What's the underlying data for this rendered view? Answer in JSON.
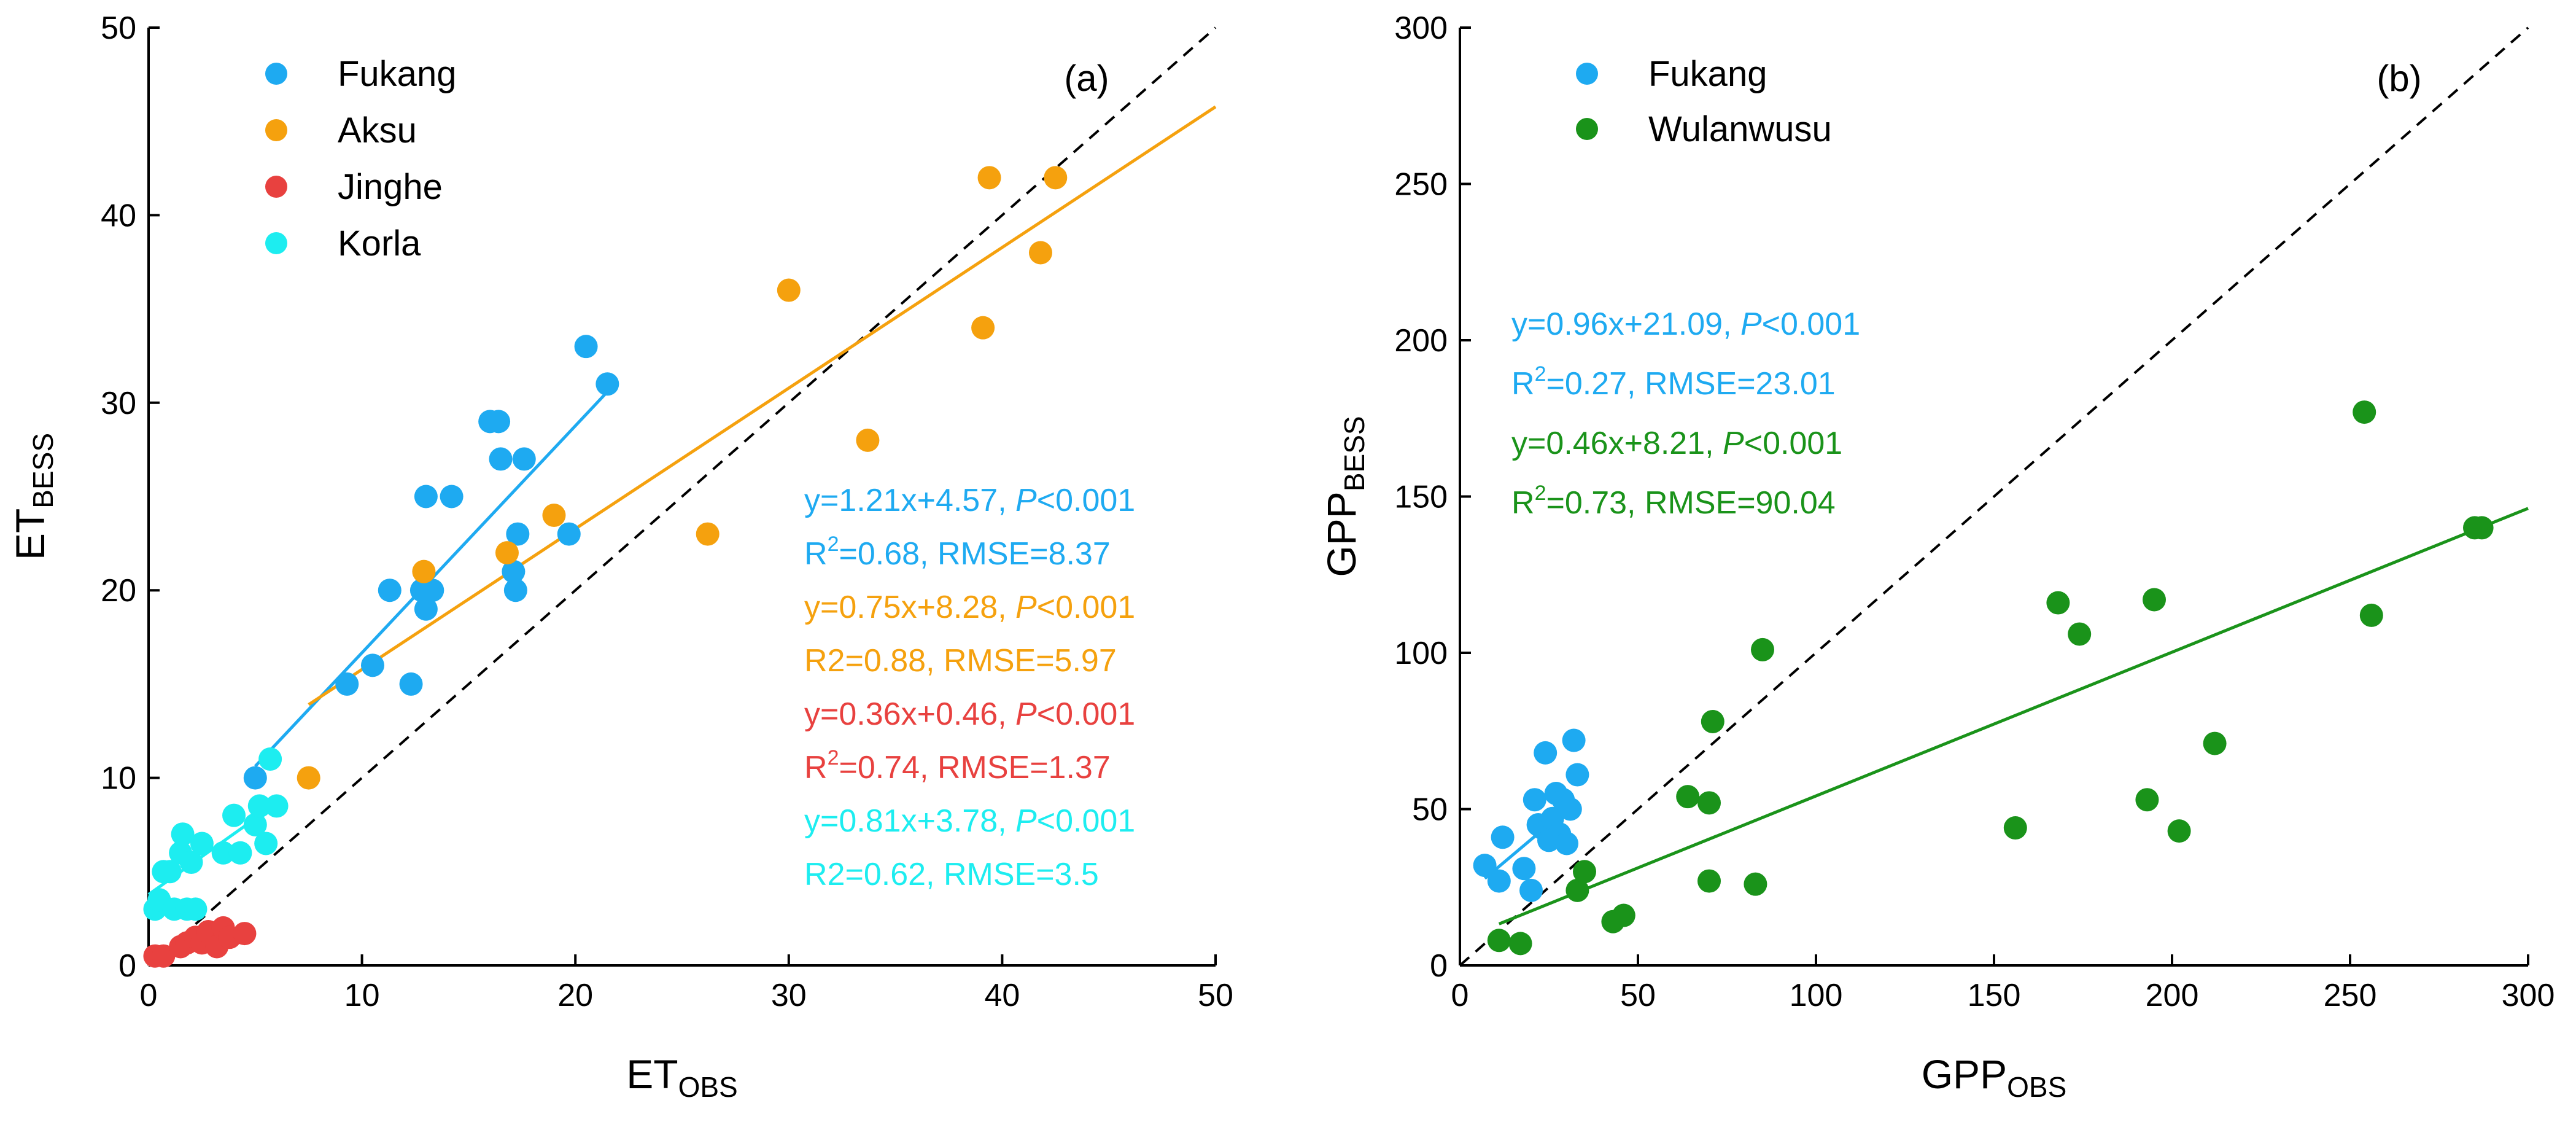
{
  "chart_data": [
    {
      "type": "scatter",
      "panel_label": "(a)",
      "xlabel": "ET",
      "xlabel_sub": "OBS",
      "ylabel": "ET",
      "ylabel_sub": "BESS",
      "xlim": [
        0,
        50
      ],
      "ylim": [
        0,
        50
      ],
      "xticks": [
        "0",
        "10",
        "20",
        "30",
        "40",
        "50"
      ],
      "yticks": [
        "0",
        "10",
        "20",
        "30",
        "40",
        "50"
      ],
      "legend_position": "top-left",
      "one_to_one_line": true,
      "series": [
        {
          "name": "Fukang",
          "color": "#1EAAF1",
          "x": [
            5,
            9.3,
            10.5,
            11.3,
            12.3,
            12.8,
            13,
            13,
            13.3,
            14.2,
            16,
            16.4,
            16.5,
            17.1,
            17.2,
            17.3,
            17.6,
            19.7,
            20.5,
            21.5
          ],
          "y": [
            10,
            15,
            16,
            20,
            15,
            20,
            19,
            25,
            20,
            25,
            29,
            29,
            27,
            21,
            20,
            23,
            27,
            23,
            33,
            31
          ],
          "fit": {
            "slope": 1.21,
            "intercept": 4.57,
            "x_range": [
              5,
              21.5
            ]
          },
          "stats": {
            "eq": "y=1.21x+4.57, ",
            "p_label": "P",
            "p_val": "<0.001",
            "r2_base": "R",
            "r2_sup": "2",
            "r2_rest": "=0.68, RMSE=8.37"
          }
        },
        {
          "name": "Aksu",
          "color": "#F5A10E",
          "x": [
            7.5,
            12.9,
            16.8,
            19,
            26.2,
            30,
            33.7,
            39.1,
            39.4,
            41.8,
            42.5
          ],
          "y": [
            10,
            21,
            22,
            24,
            23,
            36,
            28,
            34,
            42,
            38,
            42
          ],
          "fit": {
            "slope": 0.75,
            "intercept": 8.28,
            "x_range": [
              7.5,
              50
            ]
          },
          "stats": {
            "eq": "y=0.75x+8.28, ",
            "p_label": "P",
            "p_val": "<0.001",
            "r2_base": "R2",
            "r2_sup": "",
            "r2_rest": "=0.88, RMSE=5.97"
          }
        },
        {
          "name": "Jinghe",
          "color": "#E8413F",
          "x": [
            0.3,
            0.7,
            1.5,
            1.8,
            2.2,
            2.5,
            2.8,
            3.0,
            3.2,
            3.5,
            3.8,
            4.5
          ],
          "y": [
            0.5,
            0.5,
            1,
            1.2,
            1.5,
            1.2,
            1.8,
            1.5,
            1,
            2,
            1.5,
            1.7
          ],
          "fit": {
            "slope": 0.36,
            "intercept": 0.46,
            "x_range": [
              0,
              4.5
            ]
          },
          "stats": {
            "eq": "y=0.36x+0.46, ",
            "p_label": "P",
            "p_val": "<0.001",
            "r2_base": "R",
            "r2_sup": "2",
            "r2_rest": "=0.74, RMSE=1.37"
          }
        },
        {
          "name": "Korla",
          "color": "#1DEDF0",
          "x": [
            0.3,
            0.5,
            0.7,
            1.0,
            1.2,
            1.5,
            1.6,
            1.8,
            2.0,
            2.2,
            2.5,
            3.5,
            4.0,
            4.3,
            5.0,
            5.2,
            5.5,
            5.7,
            6.0
          ],
          "y": [
            3,
            3.5,
            5,
            5,
            3,
            6,
            7,
            3,
            5.5,
            3,
            6.5,
            6,
            8,
            6,
            7.5,
            8.5,
            6.5,
            11,
            8.5
          ],
          "fit": {
            "slope": 0.81,
            "intercept": 3.78,
            "x_range": [
              0,
              5.5
            ]
          },
          "stats": {
            "eq": "y=0.81x+3.78, ",
            "p_label": "P",
            "p_val": "<0.001",
            "r2_base": "R2",
            "r2_sup": "",
            "r2_rest": "=0.62, RMSE=3.5"
          }
        }
      ]
    },
    {
      "type": "scatter",
      "panel_label": "(b)",
      "xlabel": "GPP",
      "xlabel_sub": "OBS",
      "ylabel": "GPP",
      "ylabel_sub": "BESS",
      "xlim": [
        0,
        300
      ],
      "ylim": [
        0,
        300
      ],
      "xticks": [
        "0",
        "50",
        "100",
        "150",
        "200",
        "250",
        "300"
      ],
      "yticks": [
        "0",
        "50",
        "100",
        "150",
        "200",
        "250",
        "300"
      ],
      "legend_position": "top-left",
      "one_to_one_line": true,
      "series": [
        {
          "name": "Fukang",
          "color": "#1EAAF1",
          "x": [
            7,
            11,
            12,
            18,
            20,
            21,
            22,
            23,
            24,
            25,
            26,
            27,
            28,
            29,
            30,
            31,
            32,
            33
          ],
          "y": [
            32,
            27,
            41,
            31,
            24,
            53,
            45,
            44,
            68,
            40,
            47,
            55,
            42,
            53,
            39,
            50,
            72,
            61
          ],
          "fit": {
            "slope": 0.96,
            "intercept": 21.09,
            "x_range": [
              7,
              33
            ]
          },
          "stats": {
            "eq": "y=0.96x+21.09, ",
            "p_label": "P",
            "p_val": "<0.001",
            "r2_base": "R",
            "r2_sup": "2",
            "r2_rest": "=0.27, RMSE=23.01"
          }
        },
        {
          "name": "Wulanwusu",
          "color": "#1A931A",
          "x": [
            11,
            17,
            33,
            35,
            43,
            46,
            64,
            70,
            70,
            71,
            83,
            85,
            156,
            168,
            174,
            193,
            195,
            202,
            212,
            254,
            256,
            285,
            287
          ],
          "y": [
            8,
            7,
            24,
            30,
            14,
            16,
            54,
            52,
            27,
            78,
            26,
            101,
            44,
            116,
            106,
            53,
            117,
            43,
            71,
            177,
            112,
            140,
            140
          ],
          "fit": {
            "slope": 0.46,
            "intercept": 8.21,
            "x_range": [
              11,
              300
            ]
          },
          "stats": {
            "eq": "y=0.46x+8.21, ",
            "p_label": "P",
            "p_val": "<0.001",
            "r2_base": "R",
            "r2_sup": "2",
            "r2_rest": "=0.73, RMSE=90.04"
          }
        }
      ]
    }
  ]
}
